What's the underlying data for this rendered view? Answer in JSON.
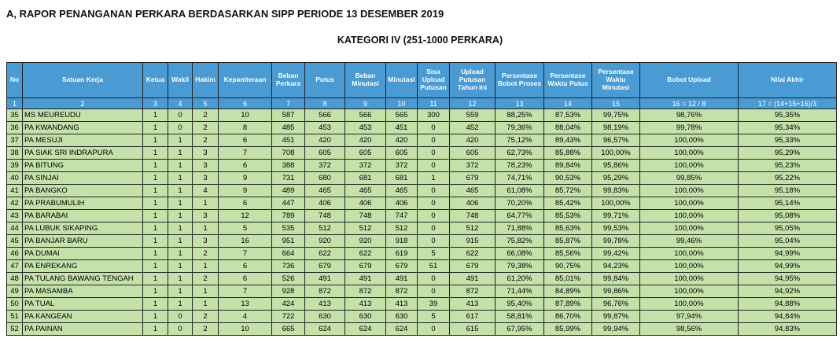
{
  "header": {
    "title": "A, RAPOR PENANGANAN PERKARA BERDASARKAN SIPP PERIODE 13 DESEMBER 2019",
    "subtitle": "KATEGORI IV (251-1000 PERKARA)"
  },
  "table": {
    "columns": [
      "No",
      "Satuan Kerja",
      "Ketua",
      "Wakil",
      "Hakim",
      "Kepaniteraan",
      "Beban Perkara",
      "Putus",
      "Beban Minutasi",
      "Minutasi",
      "Sisa Upload Putusan",
      "Upload Putusan Tahun Ini",
      "Persentase Bobot Proses",
      "Persentase Waktu Putus",
      "Persentase Waktu Minutasi",
      "Bobot Upload",
      "Nilai Akhir"
    ],
    "index_row": [
      "1",
      "2",
      "3",
      "4",
      "5",
      "6",
      "7",
      "8",
      "9",
      "10",
      "11",
      "12",
      "13",
      "14",
      "15",
      "16 = 12 / 8",
      "17 = (14+15+16)/3"
    ],
    "rows": [
      [
        35,
        "MS MEUREUDU",
        1,
        0,
        2,
        10,
        587,
        566,
        566,
        565,
        300,
        559,
        "88,25%",
        "87,53%",
        "99,75%",
        "98,76%",
        "95,35%"
      ],
      [
        36,
        "PA KWANDANG",
        1,
        0,
        2,
        8,
        485,
        453,
        453,
        451,
        0,
        452,
        "79,36%",
        "88,04%",
        "98,19%",
        "99,78%",
        "95,34%"
      ],
      [
        37,
        "PA MESUJI",
        1,
        1,
        2,
        6,
        451,
        420,
        420,
        420,
        0,
        420,
        "75,12%",
        "89,43%",
        "96,57%",
        "100,00%",
        "95,33%"
      ],
      [
        38,
        "PA SIAK SRI INDRAPURA",
        1,
        1,
        3,
        7,
        708,
        605,
        605,
        605,
        0,
        605,
        "62,73%",
        "85,88%",
        "100,00%",
        "100,00%",
        "95,29%"
      ],
      [
        39,
        "PA BITUNG",
        1,
        1,
        3,
        6,
        388,
        372,
        372,
        372,
        0,
        372,
        "78,23%",
        "89,84%",
        "95,86%",
        "100,00%",
        "95,23%"
      ],
      [
        40,
        "PA SINJAI",
        1,
        1,
        3,
        9,
        731,
        680,
        681,
        681,
        1,
        679,
        "74,71%",
        "90,53%",
        "95,29%",
        "99,85%",
        "95,22%"
      ],
      [
        41,
        "PA BANGKO",
        1,
        1,
        4,
        9,
        489,
        465,
        465,
        465,
        0,
        465,
        "61,08%",
        "85,72%",
        "99,83%",
        "100,00%",
        "95,18%"
      ],
      [
        42,
        "PA PRABUMULIH",
        1,
        1,
        1,
        6,
        447,
        406,
        406,
        406,
        0,
        406,
        "70,20%",
        "85,42%",
        "100,00%",
        "100,00%",
        "95,14%"
      ],
      [
        43,
        "PA BARABAI",
        1,
        1,
        3,
        12,
        789,
        748,
        748,
        747,
        0,
        748,
        "64,77%",
        "85,53%",
        "99,71%",
        "100,00%",
        "95,08%"
      ],
      [
        44,
        "PA LUBUK SIKAPING",
        1,
        1,
        1,
        5,
        535,
        512,
        512,
        512,
        0,
        512,
        "71,88%",
        "85,63%",
        "99,53%",
        "100,00%",
        "95,05%"
      ],
      [
        45,
        "PA BANJAR BARU",
        1,
        1,
        3,
        16,
        951,
        920,
        920,
        918,
        0,
        915,
        "75,82%",
        "85,87%",
        "99,78%",
        "99,46%",
        "95,04%"
      ],
      [
        46,
        "PA DUMAI",
        1,
        1,
        2,
        7,
        664,
        622,
        622,
        619,
        5,
        622,
        "66,08%",
        "85,56%",
        "99,42%",
        "100,00%",
        "94,99%"
      ],
      [
        47,
        "PA ENREKANG",
        1,
        1,
        1,
        6,
        736,
        679,
        679,
        679,
        51,
        679,
        "79,38%",
        "90,75%",
        "94,23%",
        "100,00%",
        "94,99%"
      ],
      [
        48,
        "PA TULANG BAWANG TENGAH",
        1,
        1,
        2,
        6,
        526,
        491,
        491,
        491,
        0,
        491,
        "61,20%",
        "85,01%",
        "99,84%",
        "100,00%",
        "94,95%"
      ],
      [
        49,
        "PA MASAMBA",
        1,
        1,
        1,
        7,
        928,
        872,
        872,
        872,
        0,
        872,
        "71,44%",
        "84,89%",
        "99,86%",
        "100,00%",
        "94,92%"
      ],
      [
        50,
        "PA TUAL",
        1,
        1,
        1,
        13,
        424,
        413,
        413,
        413,
        39,
        413,
        "95,40%",
        "87,89%",
        "96,76%",
        "100,00%",
        "94,88%"
      ],
      [
        51,
        "PA KANGEAN",
        1,
        0,
        2,
        4,
        722,
        630,
        630,
        630,
        5,
        617,
        "58,81%",
        "86,70%",
        "99,87%",
        "97,94%",
        "94,84%"
      ],
      [
        52,
        "PA PAINAN",
        1,
        0,
        2,
        10,
        665,
        624,
        624,
        624,
        0,
        615,
        "67,95%",
        "85,99%",
        "99,94%",
        "98,56%",
        "94,83%"
      ]
    ]
  }
}
